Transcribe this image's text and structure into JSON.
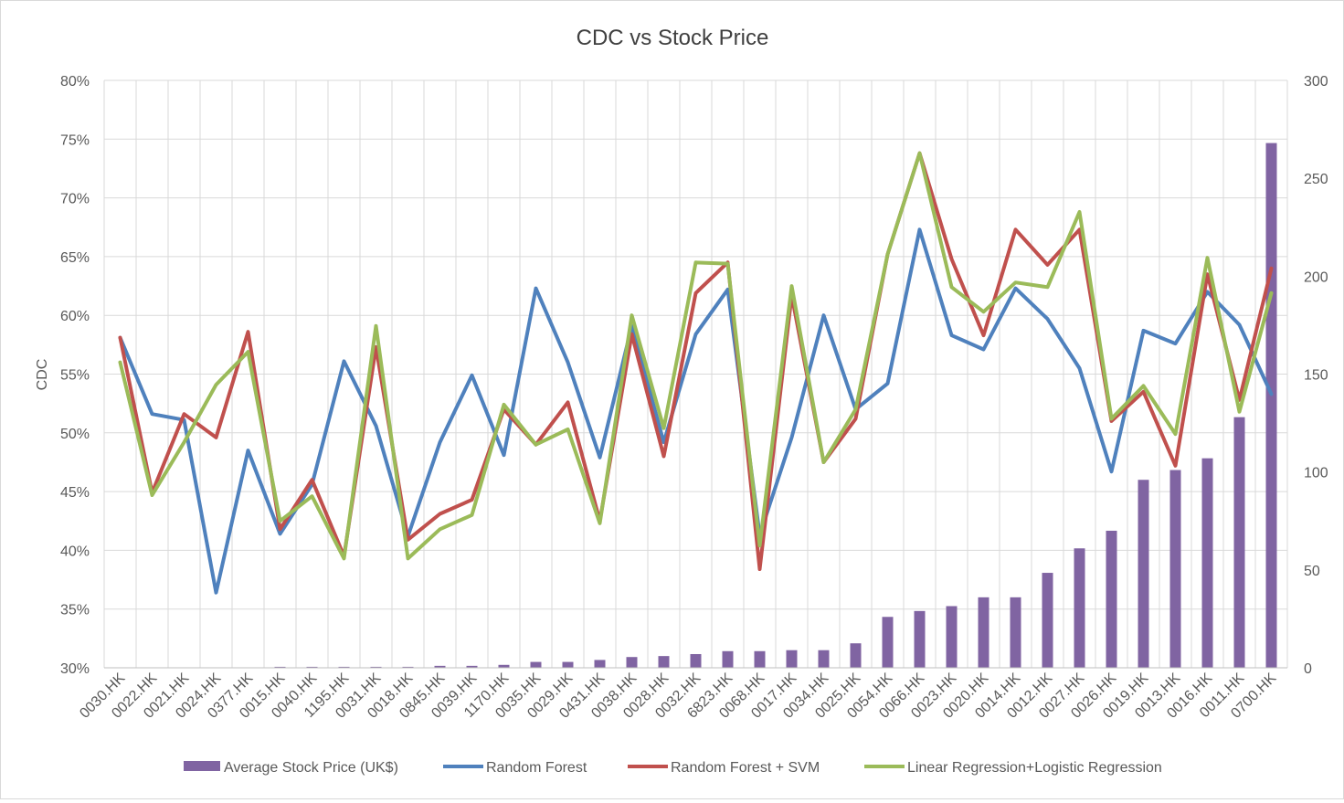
{
  "chart_data": {
    "type": "bar+line",
    "title": "CDC vs Stock Price",
    "ylabel": "CDC",
    "y2label": "",
    "ylim": [
      0.3,
      0.8
    ],
    "y_ticks": [
      "30%",
      "35%",
      "40%",
      "45%",
      "50%",
      "55%",
      "60%",
      "65%",
      "70%",
      "75%",
      "80%"
    ],
    "y2lim": [
      0,
      300
    ],
    "y2_ticks": [
      "0",
      "50",
      "100",
      "150",
      "200",
      "250",
      "300"
    ],
    "grid": "on",
    "legend_position": "bottom",
    "categories": [
      "0030.HK",
      "0022.HK",
      "0021.HK",
      "0024.HK",
      "0377.HK",
      "0015.HK",
      "0040.HK",
      "1195.HK",
      "0031.HK",
      "0018.HK",
      "0845.HK",
      "0039.HK",
      "1170.HK",
      "0035.HK",
      "0029.HK",
      "0431.HK",
      "0038.HK",
      "0028.HK",
      "0032.HK",
      "6823.HK",
      "0068.HK",
      "0017.HK",
      "0034.HK",
      "0025.HK",
      "0054.HK",
      "0066.HK",
      "0023.HK",
      "0020.HK",
      "0014.HK",
      "0012.HK",
      "0027.HK",
      "0026.HK",
      "0019.HK",
      "0013.HK",
      "0016.HK",
      "0011.HK",
      "0700.HK"
    ],
    "bar_series": {
      "name": "Average Stock Price (UK$)",
      "color": "#8064a2",
      "axis": "right",
      "values": [
        0,
        0,
        0,
        0,
        0,
        0.5,
        0.5,
        0.5,
        0.5,
        0.5,
        1,
        1,
        1.5,
        3,
        3,
        4,
        5.5,
        6,
        7,
        8.5,
        8.5,
        9,
        9,
        12.5,
        26,
        29,
        31.5,
        36,
        36,
        48.5,
        61,
        70,
        96,
        101,
        107,
        128,
        268
      ]
    },
    "series": [
      {
        "name": "Random Forest",
        "color": "#4f81bd",
        "axis": "left",
        "values": [
          0.581,
          0.516,
          0.511,
          0.364,
          0.485,
          0.414,
          0.456,
          0.561,
          0.506,
          0.412,
          0.492,
          0.549,
          0.481,
          0.623,
          0.56,
          0.479,
          0.591,
          0.492,
          0.584,
          0.622,
          0.413,
          0.496,
          0.6,
          0.52,
          0.542,
          0.673,
          0.583,
          0.571,
          0.623,
          0.597,
          0.555,
          0.467,
          0.587,
          0.576,
          0.62,
          0.592,
          0.533
        ]
      },
      {
        "name": "Random Forest + SVM",
        "color": "#c0504d",
        "axis": "left",
        "values": [
          0.581,
          0.449,
          0.516,
          0.496,
          0.586,
          0.418,
          0.46,
          0.395,
          0.573,
          0.409,
          0.431,
          0.443,
          0.52,
          0.49,
          0.526,
          0.425,
          0.584,
          0.48,
          0.619,
          0.645,
          0.384,
          0.617,
          0.475,
          0.512,
          0.652,
          0.738,
          0.648,
          0.583,
          0.673,
          0.643,
          0.673,
          0.51,
          0.535,
          0.472,
          0.635,
          0.528,
          0.64
        ]
      },
      {
        "name": "Linear Regression+Logistic Regression",
        "color": "#9bbb59",
        "axis": "left",
        "values": [
          0.56,
          0.447,
          0.492,
          0.541,
          0.569,
          0.425,
          0.446,
          0.393,
          0.591,
          0.393,
          0.418,
          0.43,
          0.524,
          0.49,
          0.503,
          0.423,
          0.6,
          0.504,
          0.645,
          0.644,
          0.404,
          0.625,
          0.475,
          0.52,
          0.652,
          0.738,
          0.624,
          0.603,
          0.628,
          0.624,
          0.688,
          0.512,
          0.54,
          0.499,
          0.649,
          0.518,
          0.619
        ]
      }
    ]
  }
}
